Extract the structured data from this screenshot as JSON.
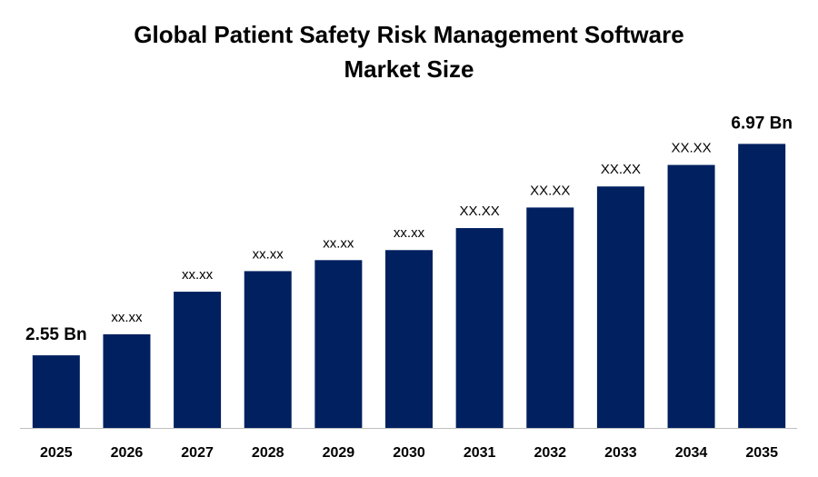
{
  "chart_data": {
    "type": "bar",
    "title": [
      "Global Patient Safety Risk Management Software",
      "Market Size"
    ],
    "categories": [
      "2025",
      "2026",
      "2027",
      "2028",
      "2029",
      "2030",
      "2031",
      "2032",
      "2033",
      "2034",
      "2035"
    ],
    "values": [
      2.55,
      2.99,
      3.88,
      4.31,
      4.54,
      4.75,
      5.21,
      5.64,
      6.08,
      6.53,
      6.97
    ],
    "value_labels": [
      "2.55 Bn",
      "xx.xx",
      "xx.xx",
      "xx.xx",
      "xx.xx",
      "xx.xx",
      "XX.XX",
      "XX.XX",
      "XX.XX",
      "XX.XX",
      "6.97 Bn"
    ],
    "color": "#002060",
    "ylim": [
      1.032,
      7.3
    ]
  }
}
